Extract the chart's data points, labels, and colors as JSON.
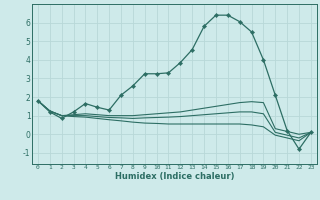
{
  "xlabel": "Humidex (Indice chaleur)",
  "background_color": "#ceeaea",
  "grid_color": "#b8d8d8",
  "line_color": "#2d6e64",
  "xlim": [
    -0.5,
    23.5
  ],
  "ylim": [
    -1.6,
    7.0
  ],
  "xtick_labels": [
    "0",
    "1",
    "2",
    "3",
    "4",
    "5",
    "6",
    "7",
    "8",
    "9",
    "10",
    "11",
    "12",
    "13",
    "14",
    "15",
    "16",
    "17",
    "18",
    "19",
    "20",
    "21",
    "22",
    "23"
  ],
  "yticks": [
    -1,
    0,
    1,
    2,
    3,
    4,
    5,
    6
  ],
  "line1_x": [
    0,
    1,
    2,
    3,
    4,
    5,
    6,
    7,
    8,
    9,
    10,
    11,
    12,
    13,
    14,
    15,
    16,
    17,
    18,
    19,
    20,
    21,
    22,
    23
  ],
  "line1_y": [
    1.8,
    1.2,
    0.85,
    1.2,
    1.65,
    1.45,
    1.3,
    2.1,
    2.6,
    3.25,
    3.25,
    3.3,
    3.85,
    4.55,
    5.8,
    6.4,
    6.4,
    6.05,
    5.5,
    4.0,
    2.1,
    0.2,
    -0.8,
    0.1
  ],
  "line2_x": [
    0,
    1,
    2,
    3,
    4,
    5,
    6,
    7,
    8,
    9,
    10,
    11,
    12,
    13,
    14,
    15,
    16,
    17,
    18,
    19,
    20,
    21,
    22,
    23
  ],
  "line2_y": [
    1.8,
    1.25,
    1.0,
    1.05,
    1.1,
    1.05,
    1.0,
    1.0,
    1.0,
    1.05,
    1.1,
    1.15,
    1.2,
    1.3,
    1.4,
    1.5,
    1.6,
    1.7,
    1.75,
    1.7,
    0.3,
    0.15,
    0.0,
    0.1
  ],
  "line3_x": [
    0,
    1,
    2,
    3,
    4,
    5,
    6,
    7,
    8,
    9,
    10,
    11,
    12,
    13,
    14,
    15,
    16,
    17,
    18,
    19,
    20,
    21,
    22,
    23
  ],
  "line3_y": [
    1.8,
    1.25,
    1.0,
    1.0,
    1.0,
    0.95,
    0.9,
    0.88,
    0.85,
    0.88,
    0.9,
    0.92,
    0.95,
    1.0,
    1.05,
    1.1,
    1.15,
    1.2,
    1.2,
    1.1,
    0.1,
    -0.05,
    -0.2,
    0.1
  ],
  "line4_x": [
    0,
    1,
    2,
    3,
    4,
    5,
    6,
    7,
    8,
    9,
    10,
    11,
    12,
    13,
    14,
    15,
    16,
    17,
    18,
    19,
    20,
    21,
    22,
    23
  ],
  "line4_y": [
    1.8,
    1.25,
    1.0,
    0.95,
    0.92,
    0.85,
    0.78,
    0.72,
    0.65,
    0.6,
    0.58,
    0.55,
    0.55,
    0.55,
    0.55,
    0.55,
    0.55,
    0.55,
    0.5,
    0.4,
    -0.05,
    -0.2,
    -0.35,
    0.1
  ]
}
